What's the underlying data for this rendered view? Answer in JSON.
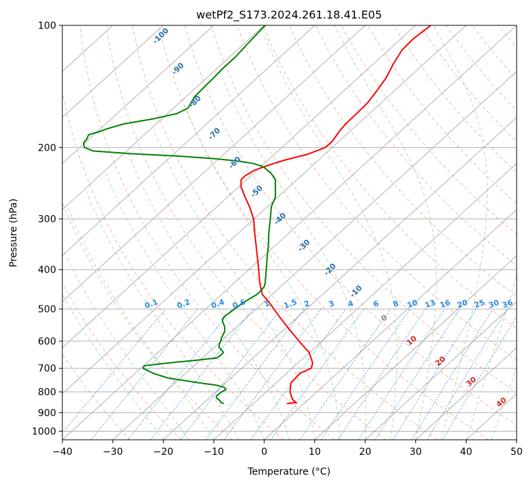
{
  "chart_data": {
    "type": "skew-t",
    "title": "wetPf2_S173.2024.261.18.41.E05",
    "xlabel": "Temperature (°C)",
    "ylabel": "Pressure (hPa)",
    "xlim": [
      -40,
      50
    ],
    "ylim": [
      1050,
      100
    ],
    "x_ticks": [
      -40,
      -30,
      -20,
      -10,
      0,
      10,
      20,
      30,
      40,
      50
    ],
    "y_ticks": [
      100,
      200,
      300,
      400,
      500,
      600,
      700,
      800,
      900,
      1000
    ],
    "grid": true,
    "colors": {
      "temperature": "#ff0000",
      "dewpoint": "#008000",
      "isotherm": "#b0b0b0",
      "dry_adiabat": "#f7a384",
      "moist_adiabat": "#8fca8f",
      "mixing_ratio": "#2a8ae0",
      "dry_adiabat_label": "#2a6fa8",
      "moist_label": "#d62728"
    },
    "series": [
      {
        "id": "temperature",
        "pressure": [
          855,
          850,
          835,
          800,
          760,
          720,
          700,
          680,
          640,
          600,
          560,
          520,
          480,
          460,
          430,
          400,
          370,
          350,
          325,
          300,
          280,
          265,
          250,
          240,
          235,
          228,
          222,
          215,
          208,
          200,
          193,
          183,
          175,
          165,
          155,
          145,
          135,
          125,
          115,
          108,
          100
        ],
        "temp_at_surface_axis": [
          4.5,
          6.3,
          5.6,
          5.1,
          5.3,
          7.1,
          9.3,
          9.6,
          8.9,
          6.9,
          4.9,
          2.9,
          0.9,
          -0.4,
          -0.9,
          -1.1,
          -1.4,
          -1.6,
          -1.9,
          -2.1,
          -2.9,
          -3.8,
          -4.6,
          -4.6,
          -3.8,
          -2.1,
          0.4,
          3.9,
          8.5,
          12.1,
          13.5,
          14.8,
          16.1,
          18.3,
          20.5,
          22.3,
          24.1,
          25.5,
          27.3,
          29.5,
          33.0
        ]
      },
      {
        "id": "dewpoint",
        "pressure": [
          855,
          850,
          840,
          830,
          820,
          810,
          800,
          790,
          780,
          770,
          760,
          740,
          720,
          700,
          690,
          680,
          670,
          660,
          650,
          640,
          630,
          620,
          610,
          600,
          590,
          580,
          570,
          560,
          550,
          540,
          530,
          520,
          510,
          500,
          480,
          460,
          450,
          440,
          430,
          400,
          370,
          350,
          325,
          300,
          280,
          265,
          250,
          240,
          232,
          225,
          222,
          219,
          216,
          213,
          210,
          207,
          204,
          200,
          195,
          190,
          186,
          183,
          180,
          175,
          170,
          165,
          160,
          150,
          140,
          135,
          128,
          120,
          110,
          100
        ],
        "temp_at_surface_axis": [
          -8.0,
          -8.6,
          -8.8,
          -9.4,
          -9.5,
          -9.0,
          -8.4,
          -7.6,
          -7.9,
          -9.5,
          -13.0,
          -19.0,
          -22.0,
          -24.0,
          -23.8,
          -19.5,
          -14.1,
          -9.4,
          -8.6,
          -8.1,
          -8.5,
          -9.0,
          -8.9,
          -8.6,
          -8.5,
          -8.2,
          -7.9,
          -7.8,
          -7.9,
          -8.2,
          -8.3,
          -7.8,
          -6.8,
          -5.9,
          -3.9,
          -1.4,
          -0.6,
          0.0,
          0.2,
          0.4,
          0.6,
          0.8,
          0.9,
          1.2,
          1.4,
          2.2,
          2.2,
          2.2,
          1.4,
          0.2,
          -0.6,
          -2.2,
          -5.1,
          -10.1,
          -17.0,
          -26.6,
          -33.9,
          -35.6,
          -35.8,
          -35.1,
          -34.8,
          -32.8,
          -31.2,
          -27.9,
          -22.0,
          -17.3,
          -15.1,
          -13.8,
          -11.4,
          -10.1,
          -8.3,
          -5.8,
          -3.0,
          0.2
        ]
      }
    ],
    "dry_adiabat_labels": [
      "-100",
      "-90",
      "-80",
      "-70",
      "-60",
      "-50",
      "-40",
      "-30",
      "-20",
      "-10"
    ],
    "mixing_ratio_labels": [
      "0.1",
      "0.2",
      "0.4",
      "0.6",
      "1",
      "1.5",
      "2",
      "3",
      "4",
      "6",
      "8",
      "10",
      "13",
      "16",
      "20",
      "25",
      "30",
      "36"
    ],
    "moist_adiabat_labels": [
      "0",
      "10",
      "20",
      "30",
      "40"
    ]
  }
}
